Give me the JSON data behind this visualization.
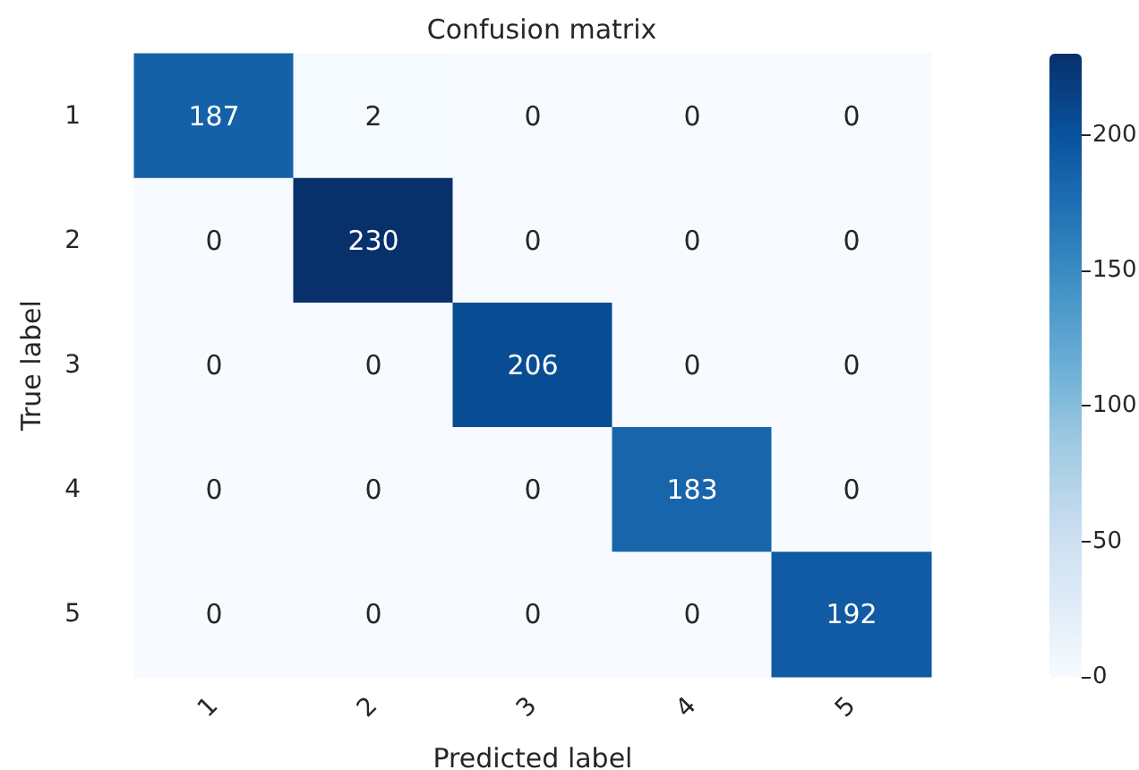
{
  "chart_data": {
    "type": "heatmap",
    "title": "Confusion matrix",
    "xlabel": "Predicted label",
    "ylabel": "True label",
    "categories": [
      "1",
      "2",
      "3",
      "4",
      "5"
    ],
    "y_categories": [
      "1",
      "2",
      "3",
      "4",
      "5"
    ],
    "cells": [
      [
        187,
        2,
        0,
        0,
        0
      ],
      [
        0,
        230,
        0,
        0,
        0
      ],
      [
        0,
        0,
        206,
        0,
        0
      ],
      [
        0,
        0,
        0,
        183,
        0
      ],
      [
        0,
        0,
        0,
        0,
        192
      ]
    ],
    "clim": [
      0,
      230
    ],
    "cticks": [
      0,
      50,
      100,
      150,
      200
    ],
    "data_labels": true
  }
}
